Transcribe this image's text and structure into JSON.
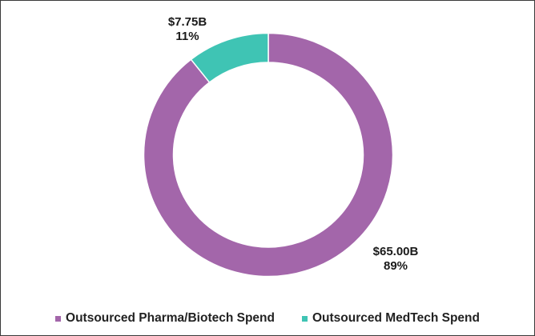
{
  "chart_data": {
    "type": "pie",
    "donut": true,
    "series": [
      {
        "name": "Outsourced Pharma/Biotech Spend",
        "value": 65.0,
        "value_label": "$65.00B",
        "percent_label": "89%",
        "color": "#A366AA"
      },
      {
        "name": "Outsourced MedTech Spend",
        "value": 7.75,
        "value_label": "$7.75B",
        "percent_label": "11%",
        "color": "#3FC4B4"
      }
    ],
    "legend_position": "bottom"
  }
}
